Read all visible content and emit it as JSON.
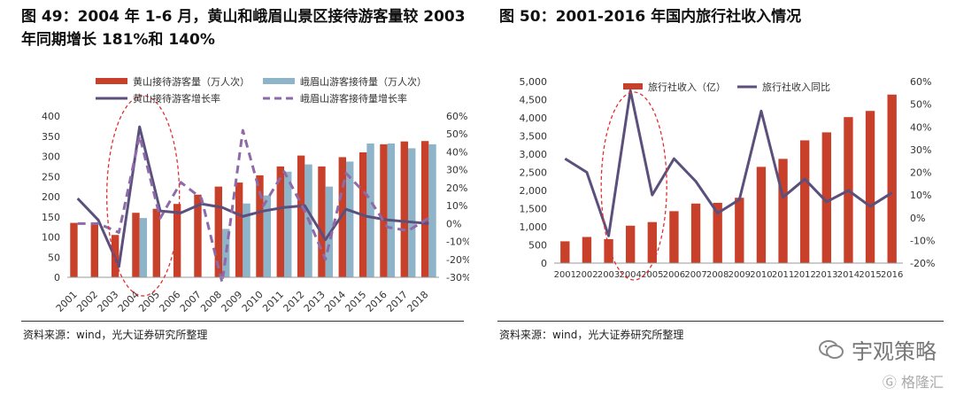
{
  "charts": {
    "left": {
      "title_line1": "图 49：2004 年 1-6 月，黄山和峨眉山景区接待游客量较 2003",
      "title_line2": "年同期增长 181%和 140%",
      "source": "资料来源：wind，光大证券研究所整理"
    },
    "right": {
      "title": "图 50：2001-2016 年国内旅行社收入情况",
      "source": "资料来源：wind，光大证券研究所整理"
    }
  },
  "watermark": {
    "brand": "宇观策略",
    "platform": "格隆汇"
  },
  "colors": {
    "bar_red": "#C8402A",
    "bar_blue": "#8DB4C8",
    "line_purple": "#5B4F7C",
    "line_dashed": "#8E6AA8",
    "highlight": "#E03030"
  },
  "chart_data": [
    {
      "type": "bar",
      "categories": [
        "2001",
        "2002",
        "2003",
        "2004",
        "2005",
        "2006",
        "2007",
        "2008",
        "2009",
        "2010",
        "2011",
        "2012",
        "2013",
        "2014",
        "2015",
        "2016",
        "2017",
        "2018"
      ],
      "series": [
        {
          "name": "黄山接待游客量（万人次）",
          "kind": "bar",
          "axis": "left",
          "values": [
            135,
            135,
            105,
            160,
            170,
            182,
            205,
            225,
            235,
            253,
            275,
            302,
            275,
            298,
            310,
            330,
            337,
            338
          ]
        },
        {
          "name": "峨眉山游客接待量（万人次）",
          "kind": "bar",
          "axis": "left",
          "values": [
            null,
            null,
            null,
            147,
            null,
            null,
            null,
            120,
            183,
            203,
            262,
            280,
            225,
            287,
            332,
            332,
            320,
            330
          ]
        },
        {
          "name": "黄山接待游客增长率",
          "kind": "line",
          "axis": "right",
          "values": [
            14,
            2,
            -24,
            54,
            7,
            6,
            11,
            9,
            4,
            7,
            9,
            10,
            -9,
            8,
            4,
            2,
            1,
            0
          ]
        },
        {
          "name": "峨眉山游客接待量增长率",
          "kind": "line-dashed",
          "axis": "right",
          "values": [
            0,
            0,
            -5,
            49,
            3,
            23,
            14,
            -33,
            52,
            10,
            29,
            7,
            -20,
            28,
            16,
            -2,
            -4,
            3
          ]
        }
      ],
      "ylim_left": [
        0,
        400
      ],
      "yticks_left": [
        "0",
        "50",
        "100",
        "150",
        "200",
        "250",
        "300",
        "350",
        "400"
      ],
      "ylim_right": [
        -30,
        60
      ],
      "yticks_right": [
        "-30%",
        "-20%",
        "-10%",
        "0%",
        "10%",
        "20%",
        "30%",
        "40%",
        "50%",
        "60%"
      ],
      "legend_position": "top",
      "highlight": "2004"
    },
    {
      "type": "bar",
      "categories": [
        "2001",
        "2002",
        "2003",
        "2004",
        "2005",
        "2006",
        "2007",
        "2008",
        "2009",
        "2010",
        "2011",
        "2012",
        "2013",
        "2014",
        "2015",
        "2016"
      ],
      "series": [
        {
          "name": "旅行社收入（亿）",
          "kind": "bar",
          "axis": "left",
          "values": [
            600,
            720,
            660,
            1030,
            1130,
            1430,
            1640,
            1660,
            1800,
            2650,
            2870,
            3380,
            3600,
            4020,
            4190,
            4640
          ]
        },
        {
          "name": "旅行社收入同比",
          "kind": "line",
          "axis": "right",
          "values": [
            26,
            20,
            -8,
            56,
            10,
            26,
            16,
            2,
            8,
            47,
            9,
            17,
            7,
            12,
            5,
            11
          ]
        }
      ],
      "ylim_left": [
        0,
        5000
      ],
      "yticks_left": [
        "0",
        "500",
        "1,000",
        "1,500",
        "2,000",
        "2,500",
        "3,000",
        "3,500",
        "4,000",
        "4,500",
        "5,000"
      ],
      "ylim_right": [
        -20,
        60
      ],
      "yticks_right": [
        "-20%",
        "-10%",
        "0%",
        "10%",
        "20%",
        "30%",
        "40%",
        "50%",
        "60%"
      ],
      "legend_position": "top",
      "highlight": "2004"
    }
  ]
}
